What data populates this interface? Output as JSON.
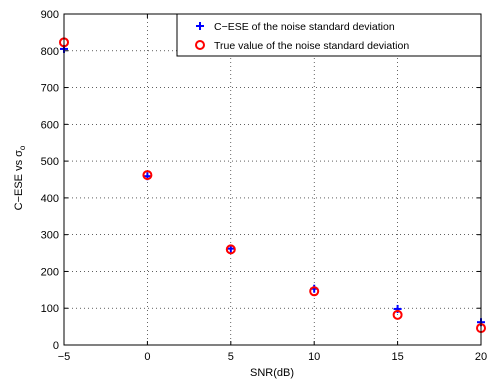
{
  "chart_data": {
    "type": "scatter",
    "xlabel": "SNR(dB)",
    "ylabel": "C−ESE vs σ",
    "ylabel_subscript": "o",
    "xlim": [
      -5,
      20
    ],
    "ylim": [
      0,
      900
    ],
    "xticks": [
      -5,
      0,
      5,
      10,
      15,
      20
    ],
    "xtick_labels": [
      "−5",
      "0",
      "5",
      "10",
      "15",
      "20"
    ],
    "yticks": [
      0,
      100,
      200,
      300,
      400,
      500,
      600,
      700,
      800,
      900
    ],
    "ytick_labels": [
      "0",
      "100",
      "200",
      "300",
      "400",
      "500",
      "600",
      "700",
      "800",
      "900"
    ],
    "grid": true,
    "grid_style": "dotted",
    "legend_position": "top-right",
    "x": [
      -5,
      0,
      5,
      10,
      15,
      20
    ],
    "series": [
      {
        "name": "C−ESE of the noise standard deviation",
        "marker": "plus",
        "color": "#0000ff",
        "values": [
          805,
          459,
          262,
          153,
          98,
          62
        ]
      },
      {
        "name": "True value of the noise standard deviation",
        "marker": "circle",
        "color": "#ff0000",
        "values": [
          823,
          462,
          260,
          146,
          82,
          46
        ]
      }
    ]
  }
}
